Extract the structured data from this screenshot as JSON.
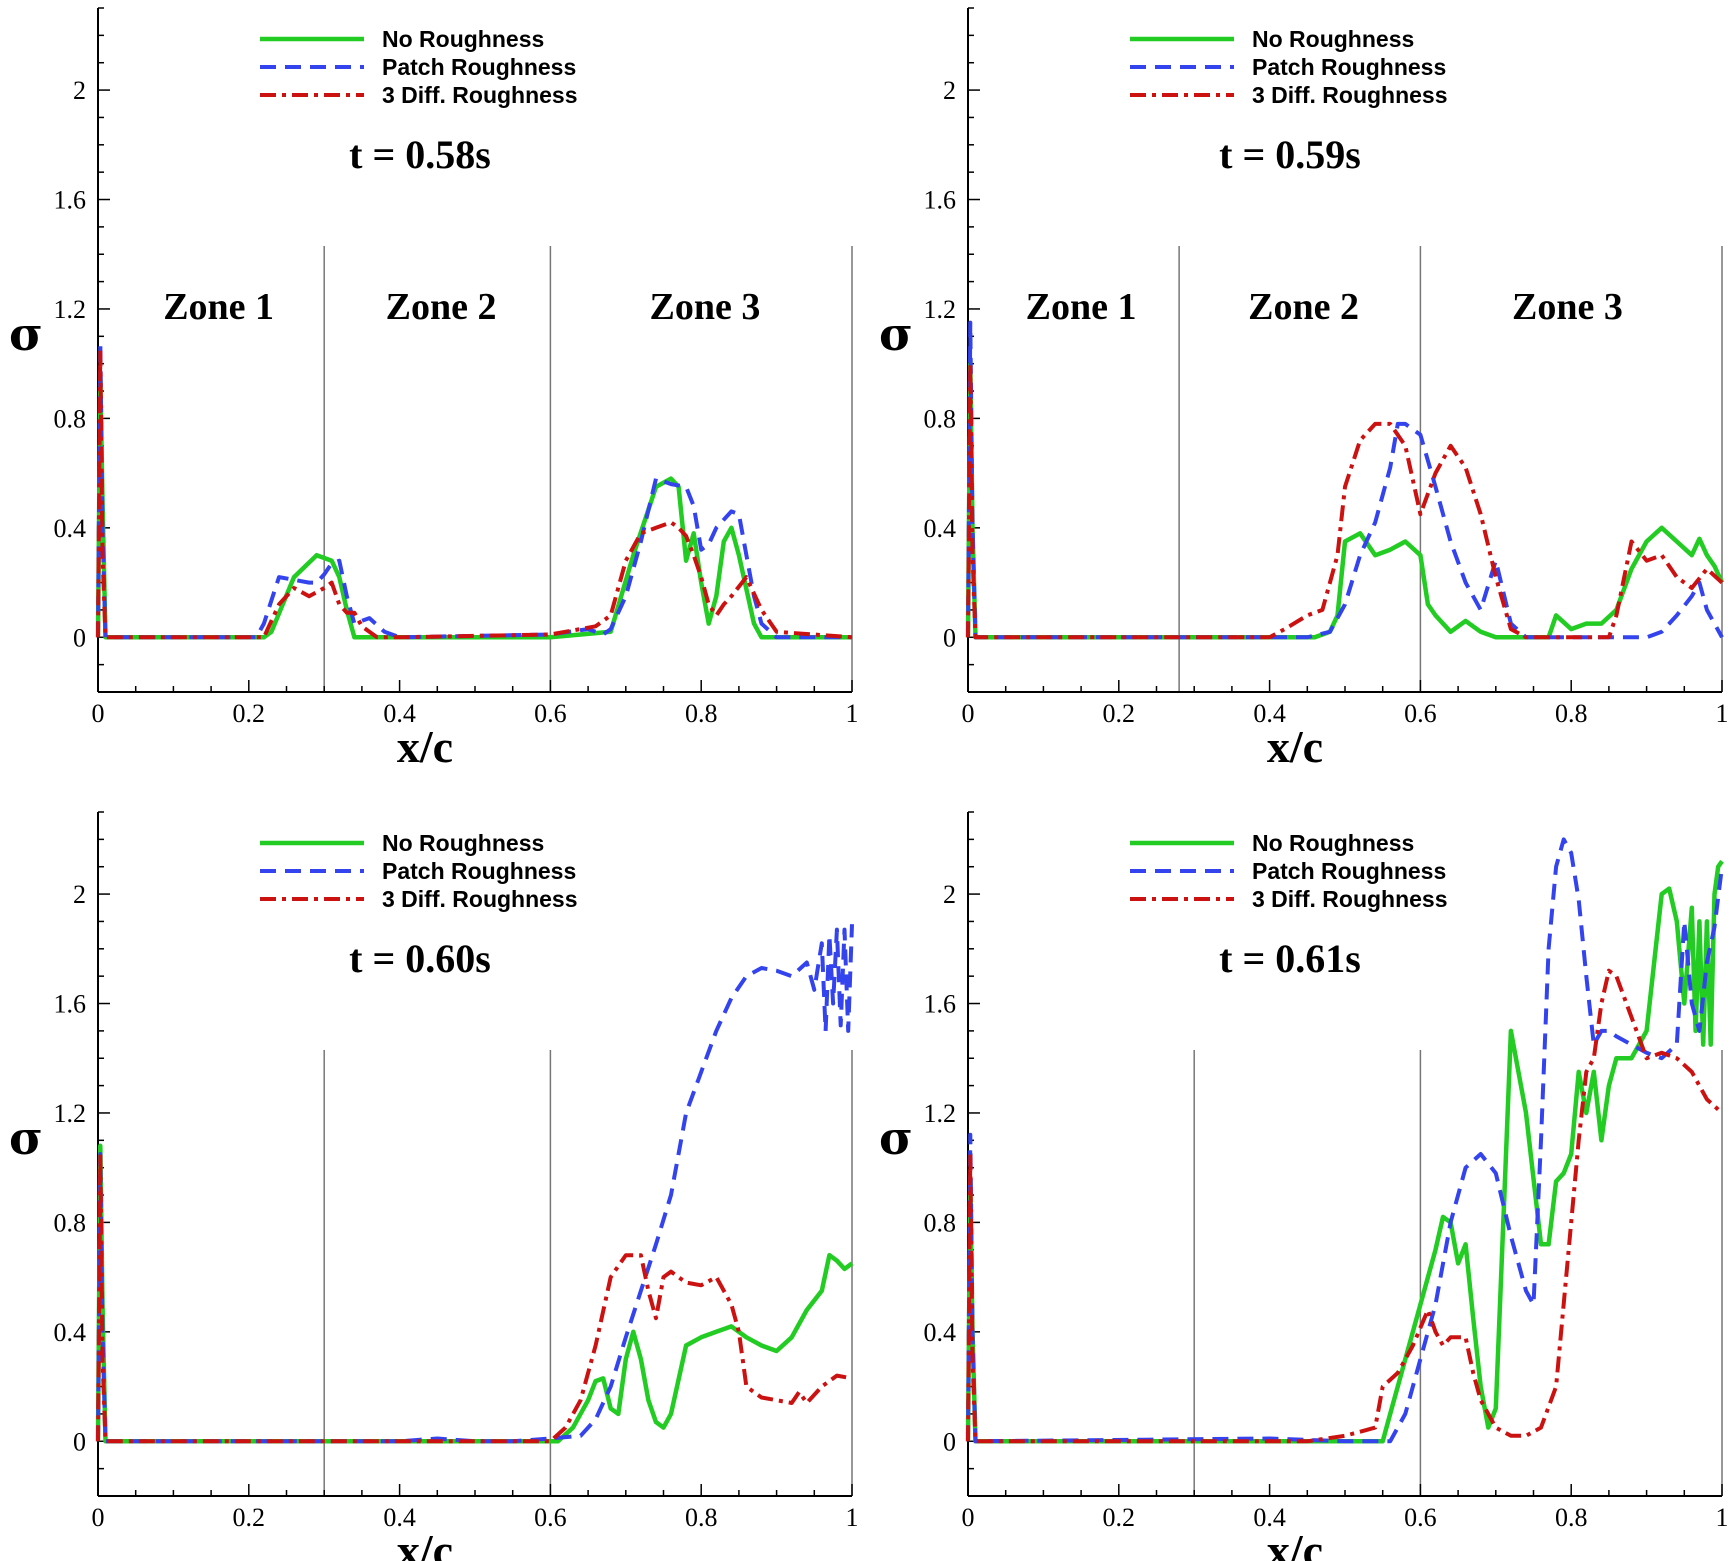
{
  "figure": {
    "legend_position": "top-center"
  },
  "colors": {
    "No Roughness": "#22cc22",
    "Patch Roughness": "#3344ee",
    "3 Diff. Roughness": "#cc1111",
    "axis": "#000000",
    "divider": "#777777"
  },
  "chart_data": [
    {
      "type": "line",
      "title": "t = 0.58s",
      "xlabel": "x/c",
      "ylabel": "σ",
      "xlim": [
        0,
        1
      ],
      "ylim": [
        -0.2,
        2.3
      ],
      "x_ticks": [
        "0",
        "0.2",
        "0.4",
        "0.6",
        "0.8",
        "1"
      ],
      "y_ticks": [
        "0",
        "0.4",
        "0.8",
        "1.2",
        "1.6",
        "2"
      ],
      "zone_dividers": [
        0.3,
        0.6,
        1.0
      ],
      "zones": [
        {
          "label": "Zone 1",
          "x": 0.16
        },
        {
          "label": "Zone 2",
          "x": 0.455
        },
        {
          "label": "Zone 3",
          "x": 0.805
        }
      ],
      "series": [
        {
          "name": "No Roughness",
          "x": [
            0,
            0.003,
            0.006,
            0.01,
            0.22,
            0.23,
            0.26,
            0.29,
            0.31,
            0.32,
            0.33,
            0.34,
            0.6,
            0.68,
            0.71,
            0.74,
            0.76,
            0.77,
            0.78,
            0.79,
            0.8,
            0.81,
            0.82,
            0.83,
            0.84,
            0.85,
            0.87,
            0.88,
            1.0
          ],
          "y": [
            0,
            0.95,
            0.5,
            0,
            0,
            0.02,
            0.22,
            0.3,
            0.28,
            0.22,
            0.1,
            0,
            0,
            0.02,
            0.3,
            0.55,
            0.58,
            0.55,
            0.28,
            0.38,
            0.2,
            0.05,
            0.15,
            0.35,
            0.4,
            0.3,
            0.05,
            0,
            0
          ]
        },
        {
          "name": "Patch Roughness",
          "x": [
            0,
            0.003,
            0.006,
            0.01,
            0.21,
            0.22,
            0.24,
            0.26,
            0.28,
            0.29,
            0.3,
            0.31,
            0.32,
            0.33,
            0.34,
            0.36,
            0.38,
            0.4,
            0.6,
            0.65,
            0.67,
            0.68,
            0.7,
            0.72,
            0.74,
            0.76,
            0.78,
            0.79,
            0.8,
            0.81,
            0.82,
            0.84,
            0.85,
            0.86,
            0.87,
            0.88,
            0.9,
            1.0
          ],
          "y": [
            0,
            1.08,
            0.4,
            0,
            0,
            0.05,
            0.22,
            0.21,
            0.2,
            0.2,
            0.23,
            0.27,
            0.28,
            0.15,
            0.05,
            0.07,
            0.02,
            0,
            0.01,
            0.03,
            0.01,
            0.03,
            0.15,
            0.35,
            0.58,
            0.56,
            0.55,
            0.48,
            0.32,
            0.34,
            0.4,
            0.46,
            0.45,
            0.3,
            0.15,
            0.05,
            0,
            0
          ]
        },
        {
          "name": "3 Diff. Roughness",
          "x": [
            0,
            0.003,
            0.006,
            0.01,
            0.22,
            0.24,
            0.26,
            0.28,
            0.3,
            0.31,
            0.32,
            0.33,
            0.34,
            0.35,
            0.37,
            0.4,
            0.6,
            0.66,
            0.68,
            0.7,
            0.72,
            0.74,
            0.76,
            0.77,
            0.78,
            0.79,
            0.8,
            0.81,
            0.82,
            0.83,
            0.84,
            0.86,
            0.88,
            0.9,
            1.0
          ],
          "y": [
            0,
            1.05,
            0.3,
            0,
            0,
            0.12,
            0.18,
            0.15,
            0.18,
            0.2,
            0.12,
            0.09,
            0.09,
            0.04,
            0,
            0,
            0.01,
            0.04,
            0.08,
            0.28,
            0.38,
            0.4,
            0.42,
            0.4,
            0.37,
            0.3,
            0.22,
            0.12,
            0.08,
            0.12,
            0.15,
            0.22,
            0.1,
            0.02,
            0
          ]
        }
      ]
    },
    {
      "type": "line",
      "title": "t = 0.59s",
      "xlabel": "x/c",
      "ylabel": "σ",
      "xlim": [
        0,
        1
      ],
      "ylim": [
        -0.2,
        2.3
      ],
      "x_ticks": [
        "0",
        "0.2",
        "0.4",
        "0.6",
        "0.8",
        "1"
      ],
      "y_ticks": [
        "0",
        "0.4",
        "0.8",
        "1.2",
        "1.6",
        "2"
      ],
      "zone_dividers": [
        0.28,
        0.6,
        1.0
      ],
      "zones": [
        {
          "label": "Zone 1",
          "x": 0.15
        },
        {
          "label": "Zone 2",
          "x": 0.445
        },
        {
          "label": "Zone 3",
          "x": 0.795
        }
      ],
      "series": [
        {
          "name": "No Roughness",
          "x": [
            0,
            0.003,
            0.006,
            0.01,
            0.46,
            0.48,
            0.49,
            0.5,
            0.52,
            0.54,
            0.56,
            0.58,
            0.6,
            0.61,
            0.62,
            0.64,
            0.66,
            0.68,
            0.7,
            0.77,
            0.78,
            0.8,
            0.82,
            0.84,
            0.86,
            0.88,
            0.9,
            0.92,
            0.94,
            0.96,
            0.97,
            0.98,
            0.99,
            1.0
          ],
          "y": [
            0,
            1.0,
            0.4,
            0,
            0,
            0.02,
            0.08,
            0.35,
            0.38,
            0.3,
            0.32,
            0.35,
            0.3,
            0.12,
            0.08,
            0.02,
            0.06,
            0.02,
            0,
            0,
            0.08,
            0.03,
            0.05,
            0.05,
            0.1,
            0.25,
            0.35,
            0.4,
            0.35,
            0.3,
            0.36,
            0.3,
            0.26,
            0.2
          ]
        },
        {
          "name": "Patch Roughness",
          "x": [
            0,
            0.003,
            0.006,
            0.01,
            0.45,
            0.48,
            0.5,
            0.52,
            0.54,
            0.56,
            0.57,
            0.58,
            0.6,
            0.62,
            0.64,
            0.66,
            0.68,
            0.7,
            0.72,
            0.74,
            0.9,
            0.92,
            0.94,
            0.96,
            0.97,
            0.98,
            1.0
          ],
          "y": [
            0,
            1.15,
            0.4,
            0,
            0,
            0.02,
            0.12,
            0.3,
            0.42,
            0.62,
            0.78,
            0.78,
            0.74,
            0.55,
            0.35,
            0.2,
            0.1,
            0.28,
            0.05,
            0,
            0,
            0.02,
            0.08,
            0.15,
            0.2,
            0.1,
            0
          ]
        },
        {
          "name": "3 Diff. Roughness",
          "x": [
            0,
            0.003,
            0.006,
            0.01,
            0.4,
            0.42,
            0.45,
            0.47,
            0.49,
            0.5,
            0.52,
            0.54,
            0.56,
            0.58,
            0.6,
            0.62,
            0.64,
            0.66,
            0.68,
            0.7,
            0.72,
            0.74,
            0.85,
            0.86,
            0.88,
            0.9,
            0.92,
            0.94,
            0.96,
            0.98,
            1.0
          ],
          "y": [
            0,
            1.0,
            0.3,
            0,
            0,
            0.03,
            0.08,
            0.1,
            0.3,
            0.55,
            0.72,
            0.78,
            0.78,
            0.7,
            0.45,
            0.6,
            0.7,
            0.62,
            0.45,
            0.22,
            0.03,
            0,
            0,
            0.08,
            0.35,
            0.28,
            0.3,
            0.22,
            0.18,
            0.25,
            0.2
          ]
        }
      ]
    },
    {
      "type": "line",
      "title": "t = 0.60s",
      "xlabel": "x/c",
      "ylabel": "σ",
      "xlim": [
        0,
        1
      ],
      "ylim": [
        -0.2,
        2.3
      ],
      "x_ticks": [
        "0",
        "0.2",
        "0.4",
        "0.6",
        "0.8",
        "1"
      ],
      "y_ticks": [
        "0",
        "0.4",
        "0.8",
        "1.2",
        "1.6",
        "2"
      ],
      "zone_dividers": [
        0.3,
        0.6,
        1.0
      ],
      "zones": [],
      "series": [
        {
          "name": "No Roughness",
          "x": [
            0,
            0.003,
            0.006,
            0.01,
            0.61,
            0.63,
            0.65,
            0.66,
            0.67,
            0.68,
            0.69,
            0.7,
            0.71,
            0.72,
            0.73,
            0.74,
            0.75,
            0.76,
            0.78,
            0.8,
            0.82,
            0.84,
            0.86,
            0.88,
            0.9,
            0.92,
            0.94,
            0.96,
            0.97,
            0.98,
            0.99,
            1.0
          ],
          "y": [
            0,
            1.08,
            0.5,
            0,
            0,
            0.05,
            0.15,
            0.22,
            0.23,
            0.12,
            0.1,
            0.3,
            0.4,
            0.3,
            0.15,
            0.07,
            0.05,
            0.1,
            0.35,
            0.38,
            0.4,
            0.42,
            0.38,
            0.35,
            0.33,
            0.38,
            0.48,
            0.55,
            0.68,
            0.66,
            0.63,
            0.65
          ]
        },
        {
          "name": "Patch Roughness",
          "x": [
            0,
            0.003,
            0.006,
            0.01,
            0.4,
            0.45,
            0.5,
            0.55,
            0.6,
            0.64,
            0.66,
            0.68,
            0.7,
            0.72,
            0.74,
            0.76,
            0.78,
            0.8,
            0.82,
            0.84,
            0.86,
            0.88,
            0.9,
            0.92,
            0.94,
            0.95,
            0.96,
            0.965,
            0.97,
            0.975,
            0.98,
            0.985,
            0.99,
            0.995,
            1.0
          ],
          "y": [
            0,
            1.05,
            0.4,
            0,
            0,
            0.01,
            0,
            0,
            0.01,
            0.02,
            0.08,
            0.2,
            0.38,
            0.55,
            0.72,
            0.9,
            1.2,
            1.35,
            1.5,
            1.62,
            1.7,
            1.73,
            1.72,
            1.7,
            1.75,
            1.65,
            1.82,
            1.5,
            1.85,
            1.6,
            1.87,
            1.52,
            1.87,
            1.5,
            1.89
          ]
        },
        {
          "name": "3 Diff. Roughness",
          "x": [
            0,
            0.003,
            0.006,
            0.01,
            0.6,
            0.62,
            0.64,
            0.66,
            0.68,
            0.7,
            0.72,
            0.73,
            0.74,
            0.75,
            0.76,
            0.78,
            0.8,
            0.82,
            0.84,
            0.85,
            0.86,
            0.88,
            0.9,
            0.92,
            0.93,
            0.94,
            0.96,
            0.98,
            1.0
          ],
          "y": [
            0,
            1.05,
            0.3,
            0,
            0,
            0.05,
            0.15,
            0.35,
            0.6,
            0.68,
            0.68,
            0.55,
            0.45,
            0.6,
            0.62,
            0.58,
            0.57,
            0.6,
            0.5,
            0.4,
            0.2,
            0.16,
            0.15,
            0.14,
            0.18,
            0.14,
            0.2,
            0.24,
            0.23
          ]
        }
      ]
    },
    {
      "type": "line",
      "title": "t = 0.61s",
      "xlabel": "x/c",
      "ylabel": "σ",
      "xlim": [
        0,
        1
      ],
      "ylim": [
        -0.2,
        2.3
      ],
      "x_ticks": [
        "0",
        "0.2",
        "0.4",
        "0.6",
        "0.8",
        "1"
      ],
      "y_ticks": [
        "0",
        "0.4",
        "0.8",
        "1.2",
        "1.6",
        "2"
      ],
      "zone_dividers": [
        0.3,
        0.6,
        1.0
      ],
      "zones": [],
      "series": [
        {
          "name": "No Roughness",
          "x": [
            0,
            0.003,
            0.006,
            0.01,
            0.55,
            0.56,
            0.58,
            0.6,
            0.62,
            0.63,
            0.64,
            0.65,
            0.66,
            0.67,
            0.68,
            0.69,
            0.7,
            0.71,
            0.72,
            0.74,
            0.76,
            0.77,
            0.78,
            0.79,
            0.8,
            0.81,
            0.82,
            0.83,
            0.84,
            0.85,
            0.86,
            0.88,
            0.9,
            0.92,
            0.93,
            0.94,
            0.95,
            0.96,
            0.965,
            0.97,
            0.975,
            0.98,
            0.985,
            0.99,
            0.995,
            1.0
          ],
          "y": [
            0,
            0.95,
            0.4,
            0,
            0,
            0.1,
            0.3,
            0.5,
            0.7,
            0.82,
            0.8,
            0.65,
            0.72,
            0.45,
            0.2,
            0.05,
            0.12,
            0.8,
            1.5,
            1.2,
            0.72,
            0.72,
            0.95,
            0.98,
            1.05,
            1.35,
            1.2,
            1.35,
            1.1,
            1.3,
            1.4,
            1.4,
            1.5,
            2.0,
            2.02,
            1.9,
            1.6,
            1.95,
            1.5,
            1.9,
            1.45,
            1.9,
            1.45,
            2.0,
            2.1,
            2.12
          ]
        },
        {
          "name": "Patch Roughness",
          "x": [
            0,
            0.003,
            0.006,
            0.01,
            0.4,
            0.5,
            0.56,
            0.58,
            0.6,
            0.62,
            0.64,
            0.66,
            0.68,
            0.7,
            0.72,
            0.74,
            0.75,
            0.76,
            0.77,
            0.78,
            0.79,
            0.8,
            0.81,
            0.82,
            0.83,
            0.84,
            0.85,
            0.86,
            0.88,
            0.9,
            0.92,
            0.94,
            0.95,
            0.96,
            0.97,
            0.98,
            0.99,
            1.0
          ],
          "y": [
            0,
            1.12,
            0.4,
            0,
            0.01,
            0,
            0,
            0.1,
            0.3,
            0.5,
            0.8,
            1.0,
            1.05,
            0.98,
            0.75,
            0.55,
            0.5,
            1.1,
            1.8,
            2.1,
            2.2,
            2.15,
            1.98,
            1.7,
            1.45,
            1.5,
            1.5,
            1.48,
            1.45,
            1.42,
            1.4,
            1.45,
            1.9,
            1.6,
            1.5,
            1.75,
            1.88,
            2.1
          ]
        },
        {
          "name": "3 Diff. Roughness",
          "x": [
            0,
            0.003,
            0.006,
            0.01,
            0.45,
            0.5,
            0.54,
            0.55,
            0.57,
            0.59,
            0.61,
            0.62,
            0.63,
            0.64,
            0.66,
            0.67,
            0.68,
            0.7,
            0.72,
            0.74,
            0.76,
            0.78,
            0.8,
            0.81,
            0.82,
            0.83,
            0.84,
            0.85,
            0.86,
            0.88,
            0.9,
            0.92,
            0.94,
            0.96,
            0.98,
            1.0
          ],
          "y": [
            0,
            1.05,
            0.3,
            0,
            0,
            0.02,
            0.05,
            0.2,
            0.25,
            0.35,
            0.48,
            0.4,
            0.35,
            0.38,
            0.38,
            0.25,
            0.15,
            0.05,
            0.02,
            0.02,
            0.05,
            0.2,
            0.8,
            1.1,
            1.35,
            1.4,
            1.6,
            1.72,
            1.7,
            1.55,
            1.4,
            1.42,
            1.4,
            1.35,
            1.25,
            1.2
          ]
        }
      ]
    }
  ]
}
